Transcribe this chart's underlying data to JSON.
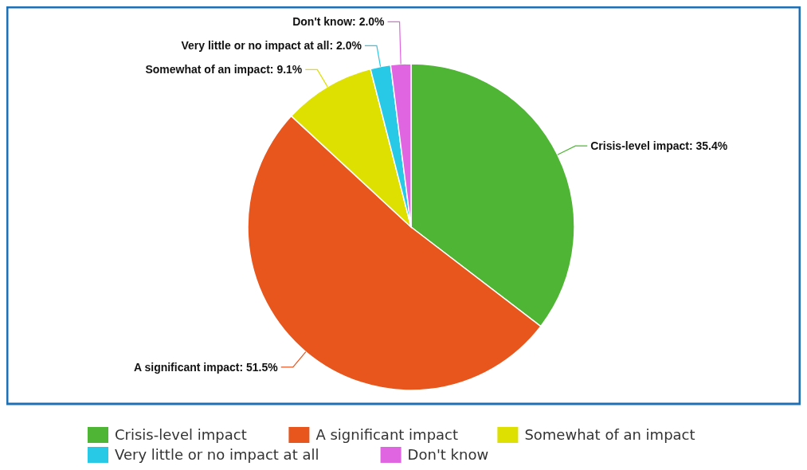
{
  "chart_data": {
    "type": "pie",
    "categories": [
      "Crisis-level impact",
      "A significant impact",
      "Somewhat of an impact",
      "Very little or no impact at all",
      "Don't know"
    ],
    "values": [
      35.4,
      51.5,
      9.1,
      2.0,
      2.0
    ],
    "colors": [
      "#4fb535",
      "#e8561e",
      "#dde000",
      "#27c9e6",
      "#e065e0"
    ],
    "value_labels": [
      "Crisis-level impact: 35.4%",
      "A significant impact: 51.5%",
      "Somewhat of an impact: 9.1%",
      "Very little or no impact at all: 2.0%",
      "Don't know: 2.0%"
    ],
    "legend": "bottom"
  }
}
